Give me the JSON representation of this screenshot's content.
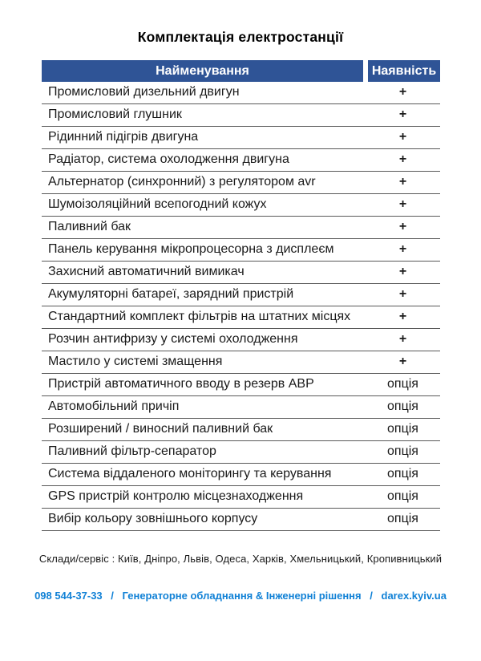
{
  "title": "Комплектація електростанції",
  "table": {
    "columns": {
      "name": "Найменування",
      "availability": "Наявність"
    },
    "rows": [
      {
        "name": "Промисловий дизельний двигун",
        "availability": "+"
      },
      {
        "name": "Промисловий глушник",
        "availability": "+"
      },
      {
        "name": "Рідинний підігрів двигуна",
        "availability": "+"
      },
      {
        "name": "Радіатор, система охолодження двигуна",
        "availability": "+"
      },
      {
        "name": "Альтернатор (синхронний) з регулятором avr",
        "availability": "+"
      },
      {
        "name": "Шумоізоляційний всепогодний кожух",
        "availability": "+"
      },
      {
        "name": "Паливний бак",
        "availability": "+"
      },
      {
        "name": "Панель керування мікропроцесорна з дисплеєм",
        "availability": "+"
      },
      {
        "name": "Захисний автоматичний вимикач",
        "availability": "+"
      },
      {
        "name": "Акумуляторні батареї, зарядний пристрій",
        "availability": "+"
      },
      {
        "name": "Стандартний комплект фільтрів на штатних місцях",
        "availability": "+"
      },
      {
        "name": "Розчин антифризу у системі охолодження",
        "availability": "+"
      },
      {
        "name": "Мастило у системі змащення",
        "availability": "+"
      },
      {
        "name": "Пристрій автоматичного вводу в резерв АВР",
        "availability": "опція"
      },
      {
        "name": "Автомобільний причіп",
        "availability": "опція"
      },
      {
        "name": "Розширений / виносний паливний бак",
        "availability": "опція"
      },
      {
        "name": "Паливний фільтр-сепаратор",
        "availability": "опція"
      },
      {
        "name": "Система віддаленого моніторингу та керування",
        "availability": "опція"
      },
      {
        "name": "GPS пристрій контролю місцезнаходження",
        "availability": "опція"
      },
      {
        "name": "Вибір кольору зовнішнього корпусу",
        "availability": "опція"
      }
    ]
  },
  "service_line": "Склади/сервіс : Київ, Дніпро, Львів, Одеса, Харків, Хмельницький, Кропивницький",
  "footer": {
    "phone": "098 544-37-33",
    "separator": "/",
    "company": "Генераторне обладнання & Інженерні рішення",
    "website": "darex.kyiv.ua"
  },
  "colors": {
    "header_bg": "#2F5496",
    "header_text": "#FFFFFF",
    "row_border": "#595959",
    "footer_text": "#1081D6",
    "body_text": "#1A1A1A"
  }
}
